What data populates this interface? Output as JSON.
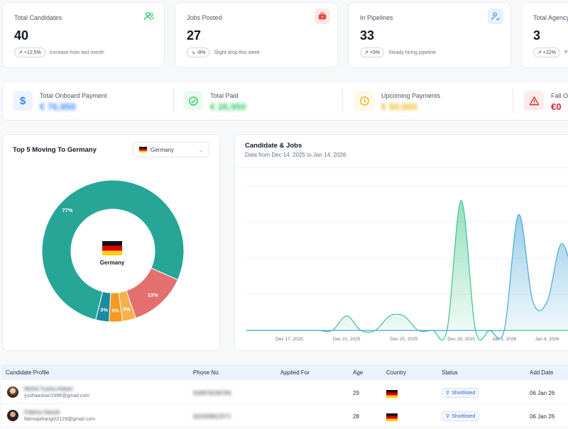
{
  "stats": [
    {
      "label": "Total Candidates",
      "value": "40",
      "trend": "+12.5%",
      "trend_dir": "up",
      "desc": "Increase from last month",
      "icon": "users-icon",
      "color": "#22c55e"
    },
    {
      "label": "Jobs Posted",
      "value": "27",
      "trend": "-8%",
      "trend_dir": "down",
      "desc": "Slight drop this week",
      "icon": "briefcase-icon",
      "color": "#ef4444"
    },
    {
      "label": "In Pipelines",
      "value": "33",
      "trend": "+5%",
      "trend_dir": "up",
      "desc": "Steady hiring pipeline",
      "icon": "user-check-icon",
      "color": "#3b82f6"
    },
    {
      "label": "Total Agency",
      "value": "3",
      "trend": "+22%",
      "trend_dir": "up",
      "desc": "Pa",
      "icon": "",
      "color": "#6b7280"
    }
  ],
  "payments": [
    {
      "label": "Total Onboard Payment",
      "value": "€ 76,950",
      "blurred": true,
      "icon": "dollar-icon",
      "color": "#3b82f6",
      "bg": "#eef4fe"
    },
    {
      "label": "Total Paid",
      "value": "€ 26,950",
      "blurred": true,
      "icon": "check-circle-icon",
      "color": "#22c55e",
      "bg": "#ecfbf1"
    },
    {
      "label": "Upcoming Payments",
      "value": "€ 50,000",
      "blurred": true,
      "icon": "clock-icon",
      "color": "#eab308",
      "bg": "#fef9e7"
    },
    {
      "label": "Fall Ou",
      "value": "€0",
      "blurred": false,
      "icon": "warning-icon",
      "color": "#dc2626",
      "bg": "#fdecec"
    }
  ],
  "donut": {
    "title": "Top 5 Moving To Germany",
    "select_value": "Germany",
    "center_label": "Germany",
    "chart_data": {
      "type": "pie",
      "labels": [
        "77%",
        "13%",
        "3%",
        "3%",
        "3%"
      ],
      "values": [
        77,
        13,
        3,
        3,
        3
      ],
      "colors": [
        "#27a697",
        "#e36f6f",
        "#f6b14c",
        "#f39a1f",
        "#1a8aa3"
      ]
    }
  },
  "line_chart": {
    "title": "Candidate & Jobs",
    "subtitle": "Data from Dec 14, 2025 to Jan 14, 2026",
    "chart_data": {
      "type": "area",
      "x": [
        "Dec 14, 2025",
        "Dec 15, 2025",
        "Dec 16, 2025",
        "Dec 17, 2025",
        "Dec 18, 2025",
        "Dec 19, 2025",
        "Dec 20, 2025",
        "Dec 21, 2025",
        "Dec 22, 2025",
        "Dec 23, 2025",
        "Dec 24, 2025",
        "Dec 25, 2025",
        "Dec 26, 2025",
        "Dec 27, 2025",
        "Dec 28, 2025",
        "Dec 29, 2025",
        "Dec 30, 2025",
        "Dec 31, 2025",
        "Jan 1, 2026",
        "Jan 2, 2026",
        "Jan 3, 2026",
        "Jan 4, 2026",
        "Jan 5, 2026",
        "Jan 6, 2026"
      ],
      "x_ticks": [
        "Dec 17, 2025",
        "Dec 21, 2025",
        "Dec 25, 2025",
        "Dec 29, 2025",
        "Jan 1, 2026",
        "Jan 4, 2026",
        "Jan 8, 2026"
      ],
      "series": [
        {
          "values": [
            0,
            0,
            0,
            0,
            0,
            0,
            0,
            1,
            0,
            0,
            1,
            1,
            0,
            0,
            0,
            9,
            0,
            0,
            0,
            0,
            0,
            0,
            0,
            0
          ],
          "color": "#3dc48a"
        },
        {
          "values": [
            0,
            0,
            0,
            0,
            0,
            0,
            0,
            0,
            0,
            0,
            0,
            0,
            0,
            0,
            0,
            0,
            0,
            0,
            0,
            8,
            2,
            2,
            6,
            3
          ],
          "color": "#4aa8d8"
        }
      ],
      "ylim": [
        0,
        10
      ]
    }
  },
  "table": {
    "headers": [
      "Candidate Profile",
      "Phone No.",
      "Applied For",
      "Age",
      "Country",
      "Status",
      "Add Date"
    ],
    "rows": [
      {
        "name": "Mohd Yusha Askari",
        "email": "yushaaskari1996@gmail.com",
        "phone": "918979236784",
        "applied": "",
        "age": "29",
        "status": "Shortlisted",
        "date": "06 Jan 26"
      },
      {
        "name": "Fatima Hamid",
        "email": "fatimajahangiri2129@gmail.com",
        "phone": "922009812571",
        "applied": "",
        "age": "28",
        "status": "Shortlisted",
        "date": "06 Jan 26"
      }
    ]
  }
}
